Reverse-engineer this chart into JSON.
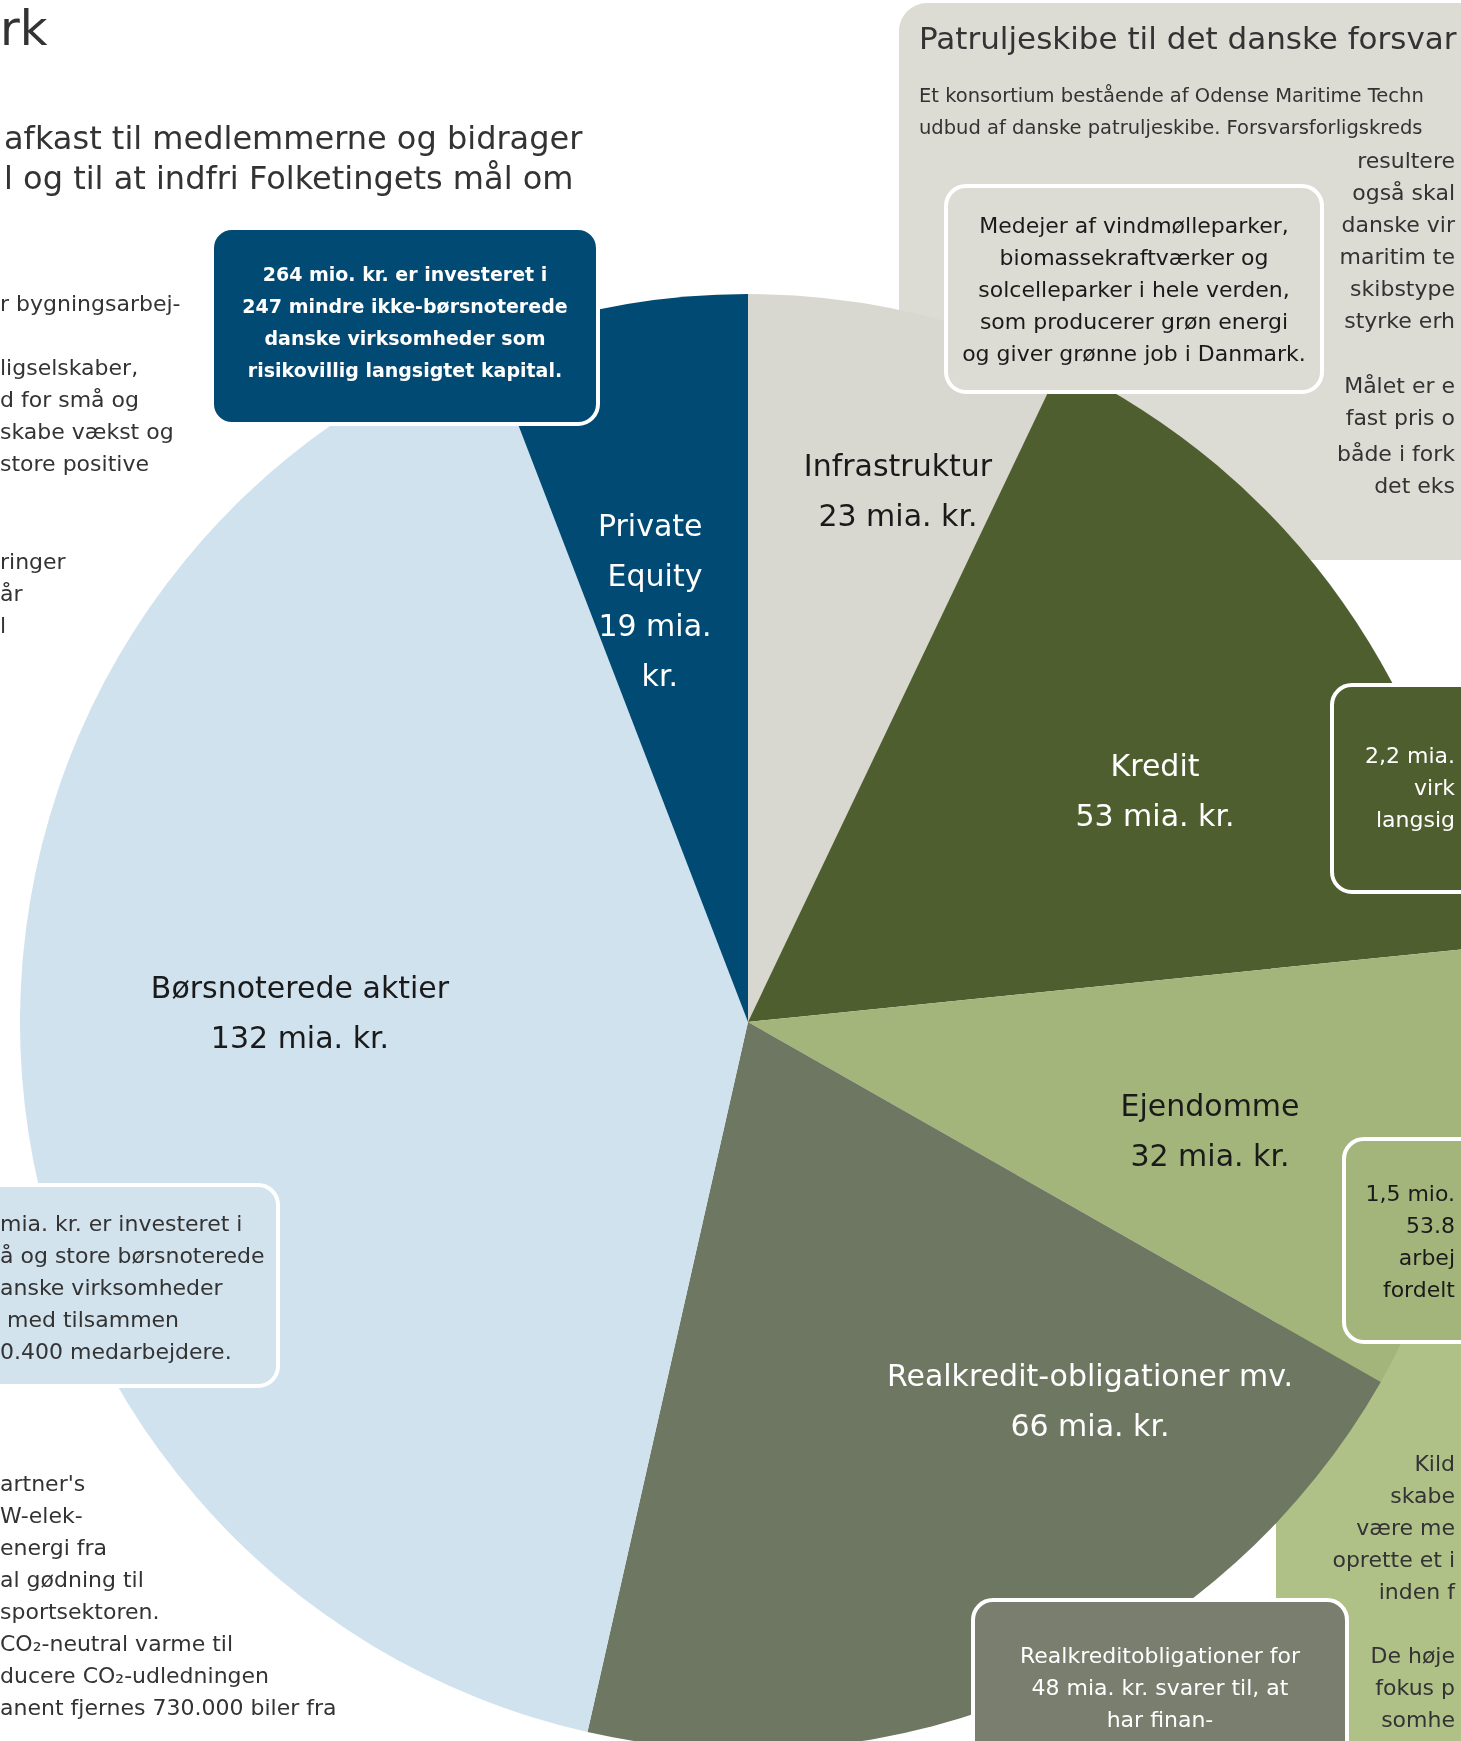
{
  "chart_data": {
    "type": "pie",
    "categories": [
      "Infrastruktur",
      "Kredit",
      "Ejendomme",
      "Realkredit-obligationer mv.",
      "Børsnoterede aktier",
      "Private Equity"
    ],
    "values": [
      23,
      53,
      32,
      66,
      132,
      19
    ],
    "value_labels": [
      "23 mia. kr.",
      "53 mia. kr.",
      "32 mia. kr.",
      "66 mia. kr.",
      "132 mia. kr.",
      "19 mia. kr."
    ],
    "colors": [
      "#d9d8d0",
      "#4f5e2e",
      "#a3b57a",
      "#6e7762",
      "#cfe2ee",
      "#004a73"
    ],
    "annotations": [
      "rk",
      "afkast til medlemmerne og bidrager\nl og til at indfri Folketingets mål om",
      "r bygningsarbej-",
      "ligselskaber,\nd for små og\nskabe vækst og\nstore positive",
      "ringer\når\nl",
      "mia. kr. er investeret i\nå og store børsnoterede\nanske virksomheder\n med tilsammen\n0.400 medarbejdere.",
      "artner's\nW-elek-\nenergi fra\nal gødning til\nsportsektoren.\nCO₂-neutral varme til\nducere CO₂-udledningen\nanent fjernes 730.000 biler fra",
      "Patruljeskibe til det danske forsvar",
      "Et konsortium bestående af Odense Maritime Techn\nudbud af danske patruljeskibe. Forsvarsforligskreds",
      "resultere\nogså skal\ndanske vir\nmaritim te\nskibstype\nstyrke erh",
      "Målet er e\nfast pris o",
      "både i fork\ndet eks",
      "264 mio. kr. er investeret i\n247 mindre ikke-børsnoterede\ndanske virksomheder som\nrisikovillig langsigtet kapital.",
      "Medejer af vindmølleparker,\nbiomassekraftværker og\nsolcelleparker i hele verden,\nsom producerer grøn energi\nog giver grønne job i Danmark.",
      "2,2 mia.\nvirk\nlangsig",
      "1,5 mio.\n53.8\narbej\nfordelt",
      "Kild\nskabe\nvære me\noprette et i\ninden f",
      "De høje\nfokus p\nsomhe",
      "Realkreditobligationer for\n48 mia. kr. svarer til, at\nhar finan-"
    ]
  }
}
